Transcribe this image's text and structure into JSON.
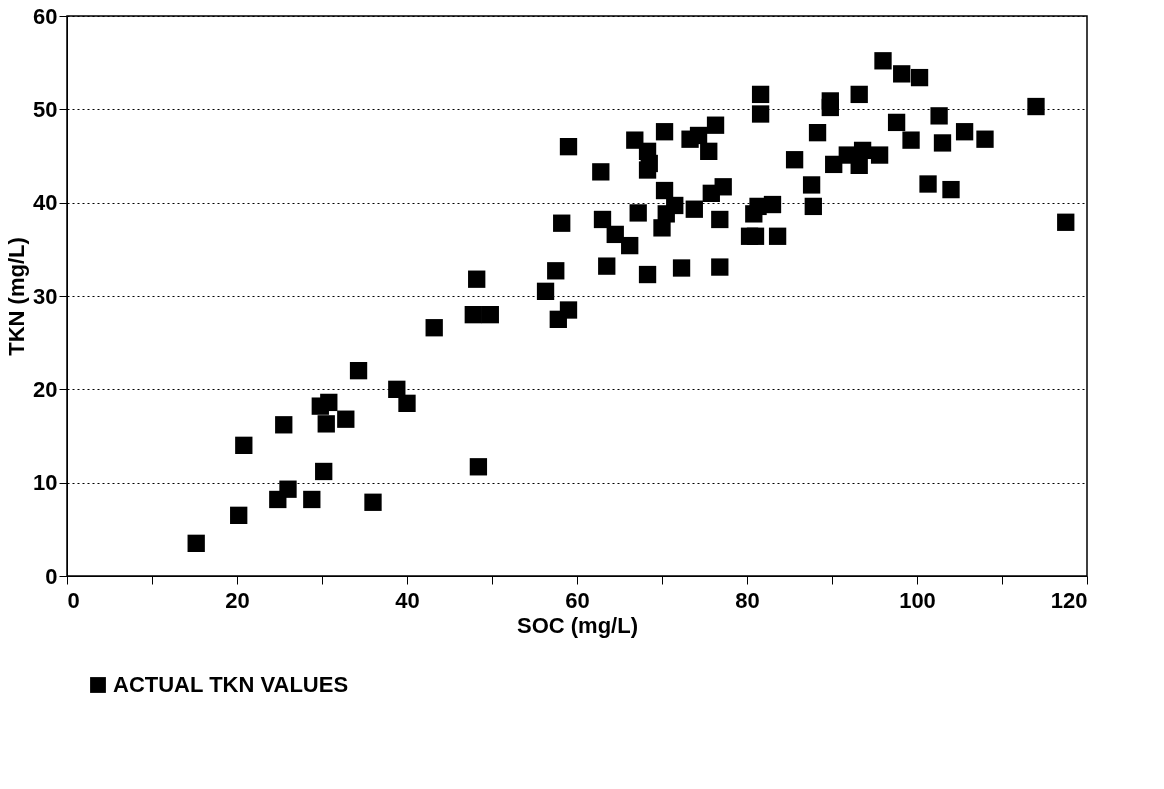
{
  "chart_data": {
    "type": "scatter",
    "xlabel": "SOC (mg/L)",
    "ylabel": "TKN (mg/L)",
    "x": [
      15.2,
      20.2,
      20.8,
      24.8,
      25.5,
      26,
      28.8,
      29.8,
      30.2,
      30.5,
      30.8,
      32.8,
      34.3,
      36,
      38.8,
      40,
      43.2,
      47.8,
      48.2,
      48.4,
      49.8,
      56.3,
      57.5,
      57.8,
      58.2,
      59,
      59,
      62.8,
      63,
      63.5,
      64.5,
      66.2,
      66.8,
      67.2,
      68.3,
      68.3,
      68.3,
      68.5,
      70,
      70.3,
      70.3,
      70.5,
      71.5,
      72.3,
      73.3,
      73.8,
      74.3,
      75.5,
      75.8,
      76.3,
      76.8,
      76.8,
      77.2,
      80.3,
      80.8,
      81,
      81.3,
      81.6,
      81.6,
      83,
      83.6,
      85.6,
      87.6,
      87.8,
      88.3,
      89.8,
      89.8,
      90.2,
      91.8,
      93.2,
      93.2,
      93.6,
      95.6,
      96,
      97.6,
      98.2,
      99.3,
      100.3,
      101.3,
      102.6,
      103,
      104,
      105.6,
      108,
      114,
      117.5
    ],
    "series": [
      {
        "name": "ACTUAL TKN VALUES",
        "color": "#000000",
        "values": [
          3.5,
          6.5,
          14,
          8.2,
          16.2,
          9.3,
          8.2,
          18.2,
          11.2,
          16.3,
          18.6,
          16.8,
          22,
          7.9,
          20,
          18.5,
          26.6,
          28,
          31.8,
          11.7,
          28,
          30.5,
          32.7,
          27.5,
          37.8,
          28.5,
          46,
          43.3,
          38.2,
          33.2,
          36.6,
          35.4,
          46.7,
          38.9,
          32.3,
          45.5,
          43.5,
          44.2,
          37.3,
          47.6,
          41.3,
          38.8,
          39.7,
          33,
          46.8,
          39.3,
          47.2,
          45.5,
          41,
          48.3,
          33.1,
          38.2,
          41.7,
          36.4,
          38.8,
          36.4,
          39.6,
          51.6,
          49.5,
          39.8,
          36.4,
          44.6,
          41.9,
          39.6,
          47.5,
          50.9,
          50.2,
          44.1,
          45.1,
          51.6,
          44,
          45.6,
          45.1,
          55.2,
          48.6,
          53.8,
          46.7,
          53.4,
          42,
          49.3,
          46.4,
          41.4,
          47.6,
          46.8,
          50.3,
          37.9
        ]
      }
    ],
    "xlim": [
      0,
      120
    ],
    "ylim": [
      0,
      60
    ],
    "xticks": [
      0,
      {
        "value": 10,
        "label": null
      },
      20,
      {
        "value": 30,
        "label": null
      },
      40,
      {
        "value": 50,
        "label": null
      },
      60,
      {
        "value": 70,
        "label": null
      },
      80,
      {
        "value": 90,
        "label": null
      },
      100,
      {
        "value": 110,
        "label": null
      },
      120
    ],
    "yticks": [
      0,
      10,
      20,
      30,
      40,
      50,
      60
    ],
    "grid": "y",
    "legend": "bottom",
    "marker": "square"
  }
}
